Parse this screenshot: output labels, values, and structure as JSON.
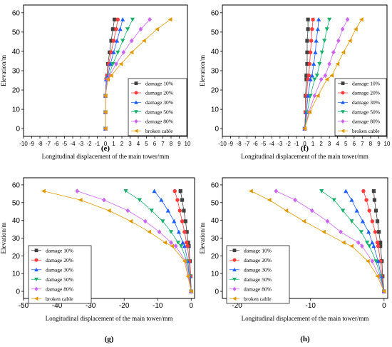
{
  "legend_labels": [
    "damage 10%",
    "damage 20%",
    "damage 30%",
    "damage 50%",
    "damage 80%",
    "broken cable"
  ],
  "series_colors": [
    "#404040",
    "#ff3b3b",
    "#1f5fff",
    "#18b06a",
    "#cc66ee",
    "#e09a00"
  ],
  "series_markers": [
    "square",
    "circle",
    "triangle-up",
    "triangle-down",
    "diamond",
    "triangle-left"
  ],
  "chart_data": [
    {
      "type": "line",
      "label": "(e)",
      "xlabel": "Longitudinal displacement of the main tower/mm",
      "ylabel": "Elevation/m",
      "xlim": [
        -10,
        10
      ],
      "ylim": [
        -4,
        64
      ],
      "xticks": [
        -10,
        -9,
        -8,
        -7,
        -6,
        -5,
        -4,
        -3,
        -2,
        -1,
        0,
        1,
        2,
        3,
        4,
        5,
        6,
        7,
        8,
        9,
        10
      ],
      "yticks": [
        0,
        10,
        20,
        30,
        40,
        50,
        60
      ],
      "legend_position": "bottom-right",
      "elevations": [
        0,
        8.5,
        17,
        25.5,
        27.5,
        33.5,
        39.5,
        45.5,
        51.5,
        56.5
      ],
      "series": [
        {
          "name": "damage 10%",
          "x": [
            0,
            0,
            0,
            0.1,
            0.2,
            0.3,
            0.5,
            0.7,
            0.9,
            1.1
          ]
        },
        {
          "name": "damage 20%",
          "x": [
            0,
            0,
            0,
            0.1,
            0.2,
            0.4,
            0.7,
            1.0,
            1.3,
            1.5
          ]
        },
        {
          "name": "damage 30%",
          "x": [
            0,
            0,
            0,
            0.1,
            0.3,
            0.6,
            1.0,
            1.4,
            1.8,
            2.1
          ]
        },
        {
          "name": "damage 50%",
          "x": [
            0,
            0,
            0,
            0.2,
            0.4,
            0.9,
            1.5,
            2.1,
            2.7,
            3.3
          ]
        },
        {
          "name": "damage 80%",
          "x": [
            0,
            0,
            0,
            0.2,
            0.5,
            1.3,
            2.2,
            3.2,
            4.3,
            5.4
          ]
        },
        {
          "name": "broken cable",
          "x": [
            0,
            0,
            0,
            0.3,
            0.7,
            1.9,
            3.2,
            4.7,
            6.3,
            7.9
          ]
        }
      ]
    },
    {
      "type": "line",
      "label": "(f)",
      "xlabel": "Longitudinal displacement of the main tower/mm",
      "ylabel": "Elevation/m",
      "xlim": [
        -10,
        10
      ],
      "ylim": [
        -4,
        64
      ],
      "xticks": [
        -10,
        -9,
        -8,
        -7,
        -6,
        -5,
        -4,
        -3,
        -2,
        -1,
        0,
        1,
        2,
        3,
        4,
        5,
        6,
        7,
        8,
        9,
        10
      ],
      "yticks": [
        0,
        10,
        20,
        30,
        40,
        50,
        60
      ],
      "legend_position": "bottom-right",
      "elevations": [
        0,
        8.5,
        17,
        25.5,
        27.5,
        33.5,
        39.5,
        45.5,
        51.5,
        56.5
      ],
      "series": [
        {
          "name": "damage 10%",
          "x": [
            0,
            0.1,
            0.1,
            0.2,
            0.2,
            0.3,
            0.3,
            0.3,
            0.4,
            0.4
          ]
        },
        {
          "name": "damage 20%",
          "x": [
            0,
            0.1,
            0.2,
            0.4,
            0.5,
            0.6,
            0.7,
            0.8,
            0.9,
            1.0
          ]
        },
        {
          "name": "damage 30%",
          "x": [
            0,
            0.2,
            0.4,
            0.7,
            0.9,
            1.1,
            1.3,
            1.4,
            1.6,
            1.7
          ]
        },
        {
          "name": "damage 50%",
          "x": [
            0,
            0.3,
            0.7,
            1.2,
            1.5,
            1.8,
            2.1,
            2.4,
            2.7,
            3.0
          ]
        },
        {
          "name": "damage 80%",
          "x": [
            0,
            0.5,
            1.2,
            2.0,
            2.5,
            3.0,
            3.5,
            4.1,
            4.6,
            5.2
          ]
        },
        {
          "name": "broken cable",
          "x": [
            0,
            0.6,
            1.6,
            2.7,
            3.3,
            4.0,
            4.7,
            5.5,
            6.2,
            6.9
          ]
        }
      ]
    },
    {
      "type": "line",
      "label": "(g)",
      "xlabel": "Longitudinal displacement of the main tower/mm",
      "ylabel": "Elevation/m",
      "xlim": [
        -50,
        1
      ],
      "ylim": [
        -4,
        64
      ],
      "xticks": [
        -50,
        -40,
        -30,
        -20,
        -10,
        0
      ],
      "yticks": [
        0,
        10,
        20,
        30,
        40,
        50,
        60
      ],
      "legend_position": "bottom-left",
      "elevations": [
        0,
        8.5,
        17,
        25.5,
        27.5,
        33.5,
        39.5,
        45.5,
        51.5,
        56.5
      ],
      "series": [
        {
          "name": "damage 10%",
          "x": [
            0,
            -0.2,
            -0.4,
            -0.7,
            -0.9,
            -1.3,
            -1.7,
            -2.2,
            -2.7,
            -3.2
          ]
        },
        {
          "name": "damage 20%",
          "x": [
            0,
            -0.3,
            -0.6,
            -1.1,
            -1.4,
            -2.0,
            -2.7,
            -3.4,
            -4.1,
            -4.9
          ]
        },
        {
          "name": "damage 30%",
          "x": [
            0,
            -0.5,
            -1.0,
            -2.0,
            -2.5,
            -3.7,
            -5.1,
            -6.9,
            -8.9,
            -11.0
          ]
        },
        {
          "name": "damage 50%",
          "x": [
            0,
            -0.6,
            -1.3,
            -3.0,
            -3.9,
            -6.0,
            -8.5,
            -11.8,
            -15.4,
            -19.5
          ]
        },
        {
          "name": "damage 80%",
          "x": [
            0,
            -0.8,
            -1.7,
            -4.6,
            -6.0,
            -9.5,
            -13.7,
            -18.9,
            -26.0,
            -34.0
          ]
        },
        {
          "name": "broken cable",
          "x": [
            0,
            -1.0,
            -2.0,
            -5.7,
            -7.8,
            -12.5,
            -18.0,
            -24.5,
            -33.0,
            -44.0
          ]
        }
      ]
    },
    {
      "type": "line",
      "label": "(h)",
      "xlabel": "Longitudinal displacement of the main tower/mm",
      "ylabel": "Elevation/m",
      "xlim": [
        -22,
        0.5
      ],
      "ylim": [
        -4,
        64
      ],
      "xticks": [
        -20,
        -10,
        0
      ],
      "yticks": [
        0,
        10,
        20,
        30,
        40,
        50,
        60
      ],
      "legend_position": "bottom-left",
      "elevations": [
        0,
        8.5,
        17,
        25.5,
        27.5,
        33.5,
        39.5,
        45.5,
        51.5,
        56.5
      ],
      "series": [
        {
          "name": "damage 10%",
          "x": [
            0,
            -0.2,
            -0.3,
            -0.5,
            -0.5,
            -0.7,
            -0.9,
            -1.1,
            -1.3,
            -1.4
          ]
        },
        {
          "name": "damage 20%",
          "x": [
            0,
            -0.3,
            -0.5,
            -0.8,
            -0.9,
            -1.2,
            -1.6,
            -2.0,
            -2.4,
            -2.8
          ]
        },
        {
          "name": "damage 30%",
          "x": [
            0,
            -0.4,
            -0.8,
            -1.4,
            -1.6,
            -2.1,
            -2.9,
            -3.7,
            -4.4,
            -5.2
          ]
        },
        {
          "name": "damage 50%",
          "x": [
            0,
            -0.5,
            -1.1,
            -2.0,
            -2.3,
            -3.1,
            -4.4,
            -5.6,
            -6.8,
            -8.5
          ]
        },
        {
          "name": "damage 80%",
          "x": [
            0,
            -0.7,
            -1.6,
            -3.0,
            -3.5,
            -5.9,
            -7.7,
            -9.8,
            -12.1,
            -14.7
          ]
        },
        {
          "name": "broken cable",
          "x": [
            0,
            -0.9,
            -2.2,
            -4.4,
            -5.5,
            -8.2,
            -10.9,
            -13.3,
            -15.6,
            -18.1
          ]
        }
      ]
    }
  ]
}
